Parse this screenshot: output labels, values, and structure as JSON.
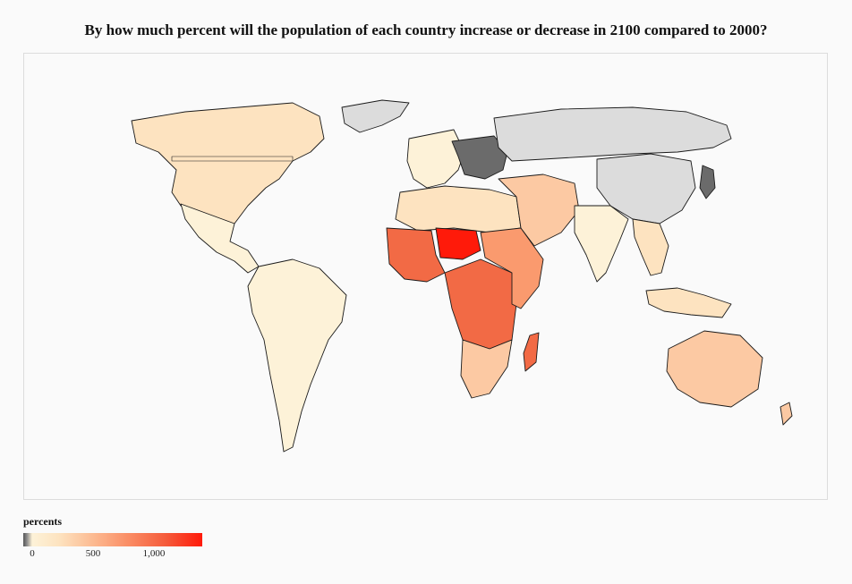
{
  "title": "By how much percent will the population of each country increase or decrease in 2100 compared to 2000?",
  "legend": {
    "title": "percents",
    "ticks": [
      "0",
      "500",
      "1,000"
    ]
  },
  "colors": {
    "decline_dark": "#6b6b6b",
    "decline_light": "#dcdcdc",
    "low_growth": "#fdf2d8",
    "mid_low": "#fde3c0",
    "mid": "#fcc9a3",
    "mid_high": "#fa9a6e",
    "high": "#f26a45",
    "max": "#ff1a0a"
  },
  "regions": [
    {
      "id": "north-america",
      "color_key": "mid_low"
    },
    {
      "id": "greenland",
      "color_key": "decline_light"
    },
    {
      "id": "mexico-central-america",
      "color_key": "low_growth"
    },
    {
      "id": "south-america",
      "color_key": "low_growth"
    },
    {
      "id": "western-europe",
      "color_key": "low_growth"
    },
    {
      "id": "eastern-europe",
      "color_key": "decline_dark"
    },
    {
      "id": "russia",
      "color_key": "decline_light"
    },
    {
      "id": "china",
      "color_key": "decline_light"
    },
    {
      "id": "japan",
      "color_key": "decline_dark"
    },
    {
      "id": "north-africa",
      "color_key": "mid_low"
    },
    {
      "id": "west-africa",
      "color_key": "high"
    },
    {
      "id": "niger",
      "color_key": "max"
    },
    {
      "id": "central-africa",
      "color_key": "high"
    },
    {
      "id": "east-africa",
      "color_key": "mid_high"
    },
    {
      "id": "southern-africa",
      "color_key": "mid"
    },
    {
      "id": "madagascar",
      "color_key": "high"
    },
    {
      "id": "middle-east",
      "color_key": "mid"
    },
    {
      "id": "india",
      "color_key": "low_growth"
    },
    {
      "id": "southeast-asia",
      "color_key": "mid_low"
    },
    {
      "id": "indonesia",
      "color_key": "mid_low"
    },
    {
      "id": "australia",
      "color_key": "mid"
    }
  ]
}
